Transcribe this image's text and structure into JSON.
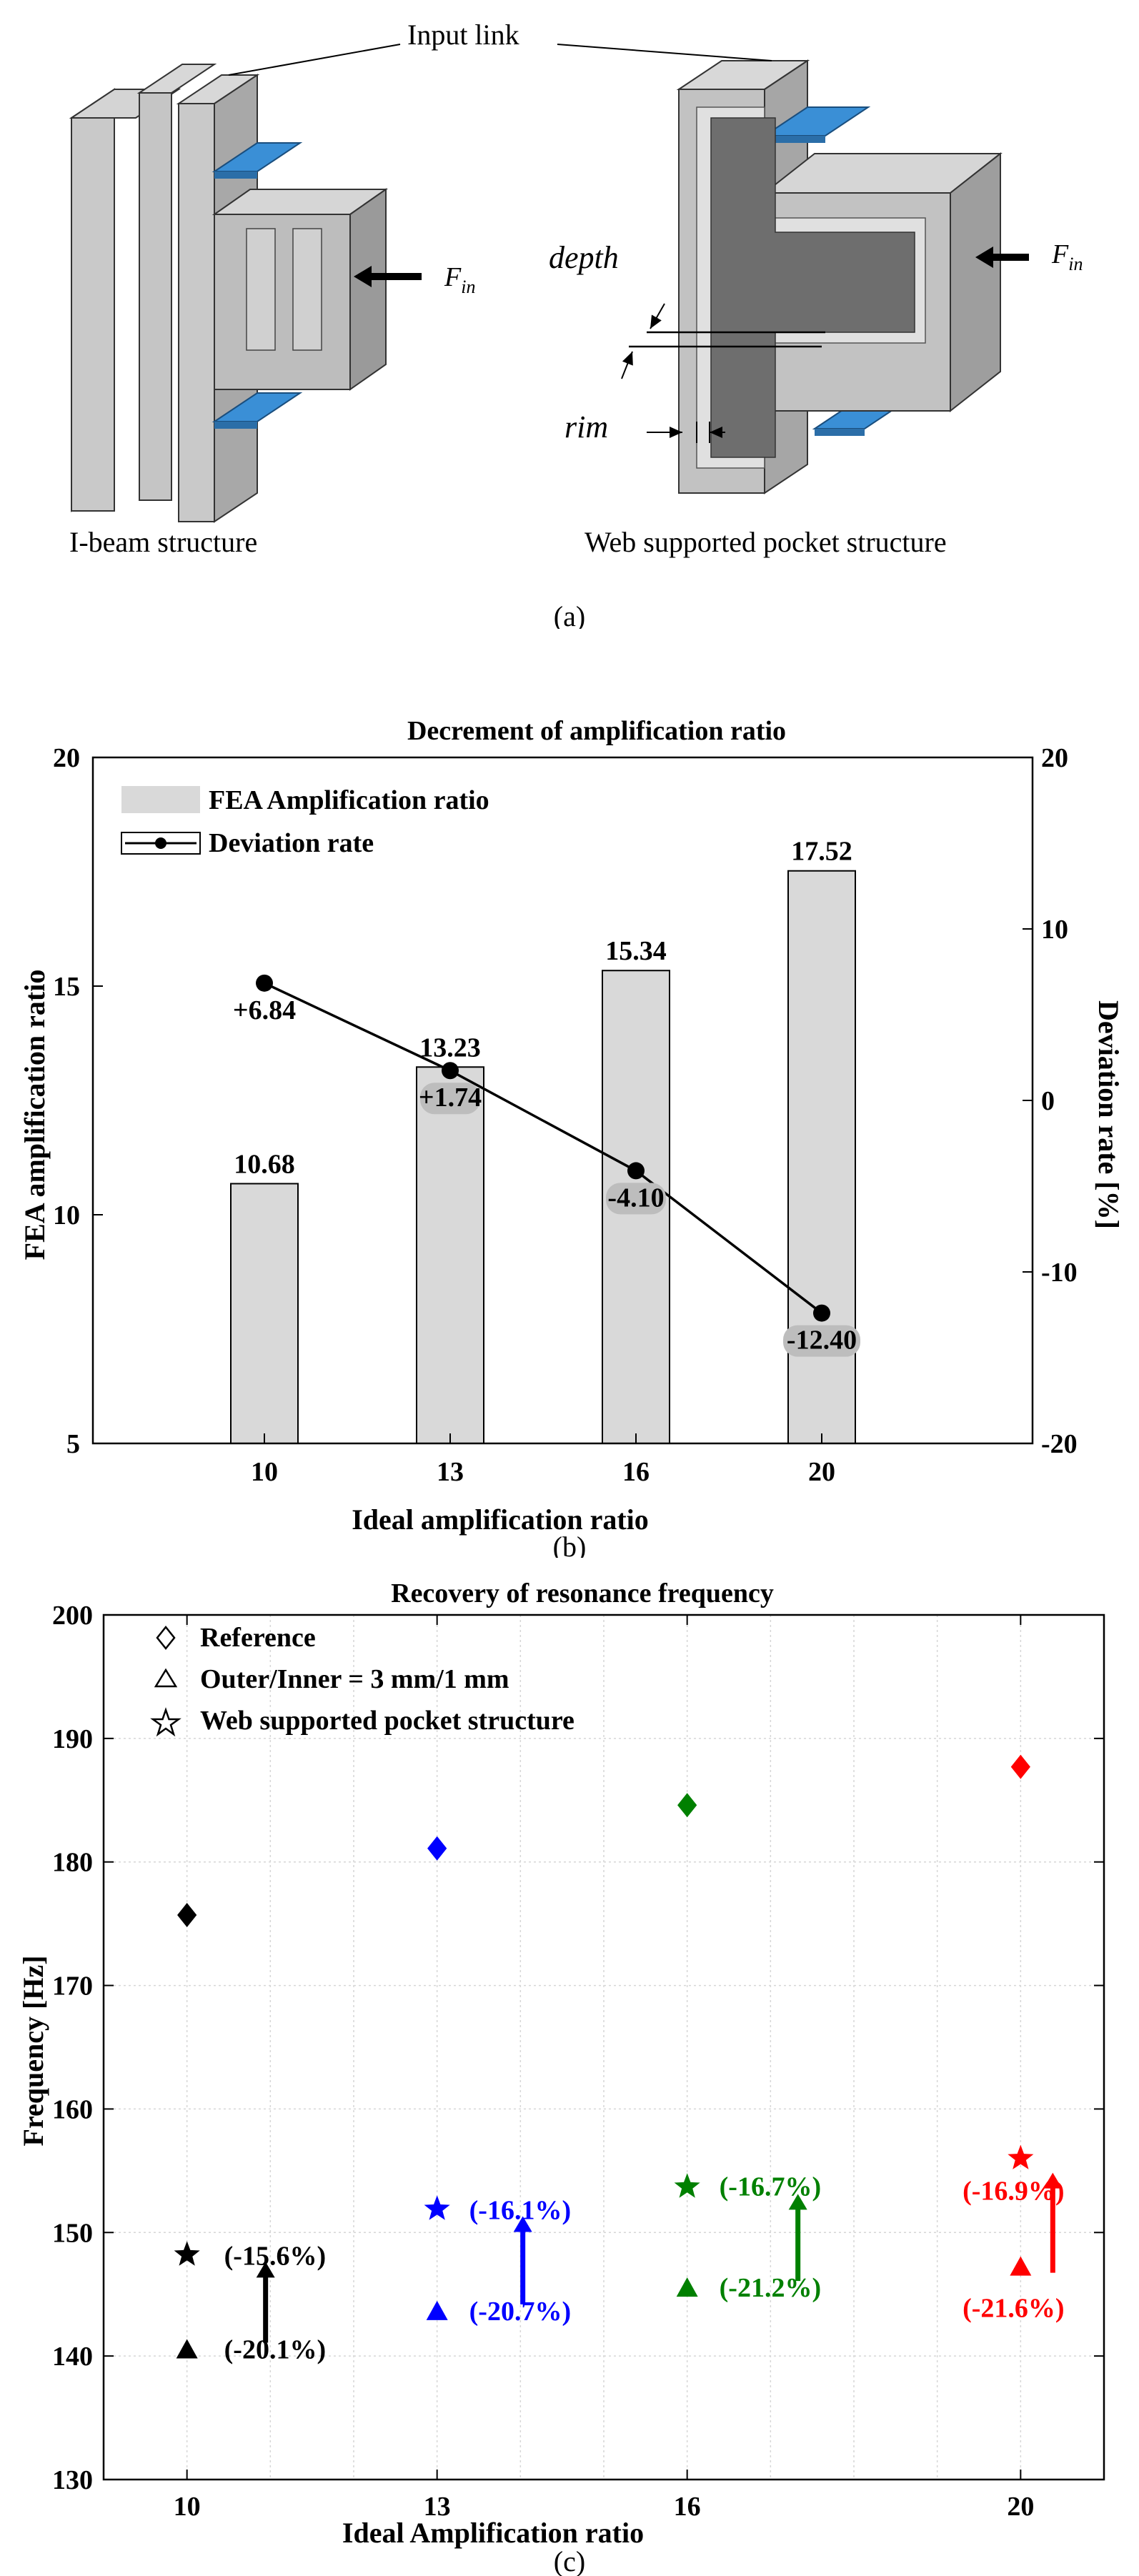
{
  "panel_a": {
    "input_link_label": "Input link",
    "force_label_main": "F",
    "force_label_sub": "in",
    "depth_label": "depth",
    "rim_label": "rim",
    "ibeam_caption": "I-beam structure",
    "web_caption": "Web supported pocket structure",
    "panel_label": "(a)"
  },
  "panel_b_label": "(b)",
  "panel_c_label": "(c)",
  "chart_data": [
    {
      "type": "bar",
      "title": "Decrement of amplification ratio",
      "xlabel": "Ideal amplification ratio",
      "ylabel": "FEA amplification ratio",
      "y2label": "Deviation rate [%]",
      "categories": [
        "10",
        "13",
        "16",
        "20"
      ],
      "ylim": [
        5,
        20
      ],
      "y2lim": [
        -20,
        20
      ],
      "yticks": [
        5,
        10,
        15,
        20
      ],
      "y2ticks": [
        -20,
        -10,
        0,
        10,
        20
      ],
      "legend_position": "top-left",
      "series": [
        {
          "name": "FEA Amplification ratio",
          "type": "bar",
          "axis": "left",
          "color": "#d9d9d9",
          "values": [
            10.68,
            13.23,
            15.34,
            17.52
          ],
          "labels": [
            "10.68",
            "13.23",
            "15.34",
            "17.52"
          ]
        },
        {
          "name": "Deviation rate",
          "type": "line",
          "axis": "right",
          "color": "#000000",
          "values": [
            6.84,
            1.74,
            -4.1,
            -12.4
          ],
          "labels": [
            "+6.84",
            "+1.74",
            "-4.10",
            "-12.40"
          ]
        }
      ]
    },
    {
      "type": "scatter",
      "title": "Recovery of resonance frequency",
      "xlabel": "Ideal Amplification ratio",
      "ylabel": "Frequency [Hz]",
      "xticks": [
        10,
        13,
        16,
        20
      ],
      "xlim": [
        9,
        21
      ],
      "ylim": [
        130,
        200
      ],
      "yticks": [
        130,
        140,
        150,
        160,
        170,
        180,
        190,
        200
      ],
      "grid": true,
      "legend_position": "top-left",
      "legend": [
        "Reference",
        "Outer/Inner = 3 mm/1 mm",
        "Web supported pocket structure"
      ],
      "colors": [
        "#000000",
        "#0000ff",
        "#008000",
        "#ff0000"
      ],
      "series": [
        {
          "name": "Reference",
          "marker": "diamond",
          "x": [
            10,
            13,
            16,
            20
          ],
          "y": [
            175.7,
            181.1,
            184.6,
            187.7
          ]
        },
        {
          "name": "Outer/Inner = 3 mm/1 mm",
          "marker": "triangle",
          "x": [
            10,
            13,
            16,
            20
          ],
          "y": [
            140.5,
            143.6,
            145.5,
            147.2
          ],
          "labels": [
            "(-20.1%)",
            "(-20.7%)",
            "(-21.2%)",
            "(-21.6%)"
          ]
        },
        {
          "name": "Web supported pocket structure",
          "marker": "star",
          "x": [
            10,
            13,
            16,
            20
          ],
          "y": [
            148.2,
            151.9,
            153.7,
            156.0
          ],
          "labels": [
            "(-15.6%)",
            "(-16.1%)",
            "(-16.7%)",
            "(-16.9%)"
          ]
        }
      ]
    }
  ]
}
